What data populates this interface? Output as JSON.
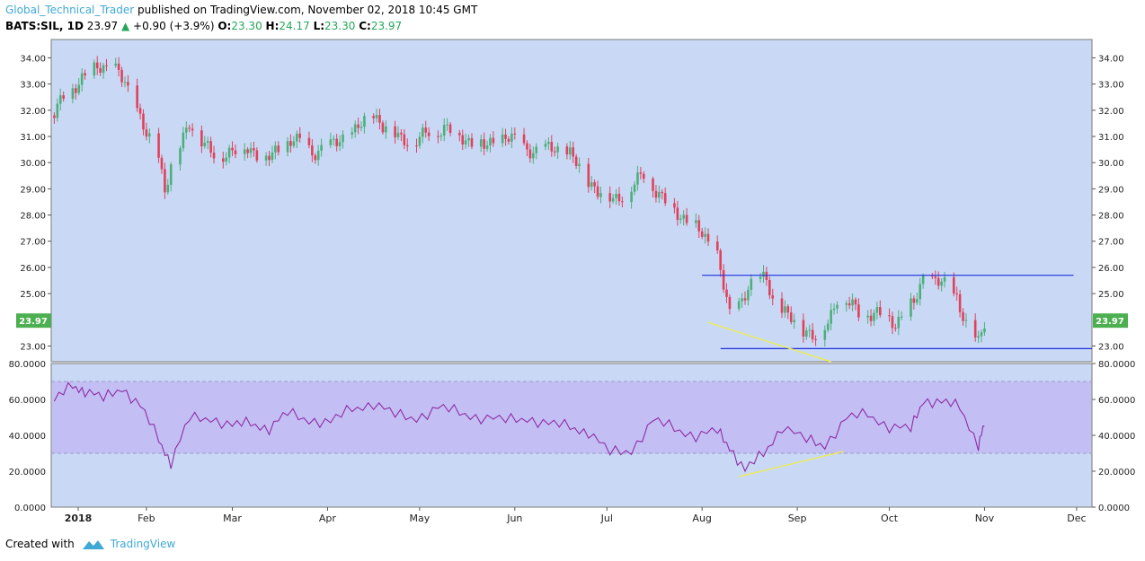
{
  "header": {
    "author": "Global_Technical_Trader",
    "published": "published on TradingView.com, November 02, 2018 10:45 GMT",
    "symbol": "BATS:SIL, 1D",
    "last": "23.97",
    "change": "+0.90 (+3.9%)",
    "o_label": "O:",
    "o": "23.30",
    "h_label": "H:",
    "h": "24.17",
    "l_label": "L:",
    "l": "23.30",
    "c_label": "C:",
    "c": "23.97"
  },
  "footer": {
    "created_with": "Created with",
    "brand": "TradingView"
  },
  "colors": {
    "panel_bg": "#c9d9f5",
    "up": "#4caf7a",
    "down": "#e0415b",
    "rsi_line": "#8e2ca3",
    "rsi_band": "#c3bff4",
    "trendline_blue": "#1f2fe0",
    "trendline_yellow": "#eaea5c",
    "price_tag": "#4caf50"
  },
  "chart_data": [
    {
      "type": "candlestick",
      "symbol": "BATS:SIL",
      "interval": "1D",
      "ylim": [
        22.4,
        34.7
      ],
      "y_ticks": [
        "23.00",
        "25.00",
        "26.00",
        "27.00",
        "28.00",
        "29.00",
        "30.00",
        "31.00",
        "32.00",
        "33.00",
        "34.00"
      ],
      "x_labels": [
        "2018",
        "Feb",
        "Mar",
        "Apr",
        "May",
        "Jun",
        "Jul",
        "Aug",
        "Sep",
        "Oct",
        "Nov",
        "Dec"
      ],
      "last_price_label": "23.97",
      "close_series": {
        "dates": [
          "2018-01-02",
          "2018-01-05",
          "2018-01-09",
          "2018-01-12",
          "2018-01-16",
          "2018-01-19",
          "2018-01-23",
          "2018-01-25",
          "2018-01-29",
          "2018-02-01",
          "2018-02-05",
          "2018-02-07",
          "2018-02-09",
          "2018-02-12",
          "2018-02-15",
          "2018-02-20",
          "2018-02-23",
          "2018-03-01",
          "2018-03-06",
          "2018-03-12",
          "2018-03-16",
          "2018-03-21",
          "2018-03-27",
          "2018-04-02",
          "2018-04-05",
          "2018-04-10",
          "2018-04-16",
          "2018-04-19",
          "2018-04-24",
          "2018-04-30",
          "2018-05-04",
          "2018-05-10",
          "2018-05-16",
          "2018-05-22",
          "2018-05-29",
          "2018-06-04",
          "2018-06-08",
          "2018-06-14",
          "2018-06-19",
          "2018-06-22",
          "2018-06-28",
          "2018-07-03",
          "2018-07-09",
          "2018-07-13",
          "2018-07-19",
          "2018-07-25",
          "2018-07-31",
          "2018-08-06",
          "2018-08-10",
          "2018-08-14",
          "2018-08-16",
          "2018-08-22",
          "2018-08-24",
          "2018-08-29",
          "2018-09-04",
          "2018-09-07",
          "2018-09-11",
          "2018-09-14",
          "2018-09-18",
          "2018-09-21",
          "2018-09-27",
          "2018-10-03",
          "2018-10-09",
          "2018-10-12",
          "2018-10-16",
          "2018-10-19",
          "2018-10-23",
          "2018-10-26",
          "2018-10-30",
          "2018-11-01"
        ],
        "closes": [
          31.8,
          32.6,
          32.9,
          33.2,
          33.8,
          33.6,
          33.4,
          33.1,
          32.0,
          31.0,
          30.3,
          29.0,
          29.8,
          30.6,
          31.6,
          30.6,
          30.3,
          30.4,
          30.6,
          30.1,
          30.5,
          30.9,
          30.4,
          30.6,
          30.9,
          31.2,
          31.9,
          31.4,
          31.0,
          30.8,
          31.2,
          31.3,
          30.9,
          30.6,
          31.0,
          30.6,
          30.4,
          30.6,
          30.3,
          29.8,
          28.9,
          28.6,
          29.0,
          29.6,
          28.6,
          28.0,
          27.4,
          26.5,
          24.1,
          24.8,
          25.3,
          25.6,
          24.8,
          24.1,
          23.6,
          23.3,
          23.9,
          24.9,
          24.6,
          24.3,
          24.2,
          23.9,
          24.6,
          25.6,
          25.5,
          25.3,
          24.9,
          23.8,
          23.1,
          23.97
        ]
      }
    },
    {
      "type": "line",
      "indicator": "RSI",
      "ylim": [
        0,
        80
      ],
      "band": [
        30,
        70
      ],
      "y_ticks": [
        "0.0000",
        "20.0000",
        "40.0000",
        "60.0000",
        "80.0000"
      ],
      "x": [
        "2018-01-02",
        "2018-01-08",
        "2018-01-12",
        "2018-01-18",
        "2018-01-24",
        "2018-01-30",
        "2018-02-05",
        "2018-02-09",
        "2018-02-15",
        "2018-02-22",
        "2018-03-01",
        "2018-03-07",
        "2018-03-13",
        "2018-03-19",
        "2018-03-26",
        "2018-04-02",
        "2018-04-09",
        "2018-04-16",
        "2018-04-23",
        "2018-04-30",
        "2018-05-07",
        "2018-05-14",
        "2018-05-21",
        "2018-05-29",
        "2018-06-05",
        "2018-06-12",
        "2018-06-19",
        "2018-06-25",
        "2018-07-02",
        "2018-07-09",
        "2018-07-16",
        "2018-07-23",
        "2018-07-30",
        "2018-08-06",
        "2018-08-10",
        "2018-08-15",
        "2018-08-21",
        "2018-08-27",
        "2018-09-04",
        "2018-09-10",
        "2018-09-17",
        "2018-09-24",
        "2018-10-01",
        "2018-10-08",
        "2018-10-12",
        "2018-10-18",
        "2018-10-24",
        "2018-10-30",
        "2018-11-01"
      ],
      "values": [
        59,
        68,
        65,
        60,
        67,
        56,
        38,
        25,
        49,
        50,
        45,
        47,
        44,
        52,
        49,
        47,
        55,
        58,
        51,
        50,
        55,
        53,
        50,
        48,
        50,
        46,
        45,
        42,
        30,
        32,
        48,
        44,
        40,
        42,
        34,
        20,
        30,
        45,
        37,
        35,
        49,
        52,
        45,
        43,
        60,
        58,
        56,
        35,
        45
      ]
    }
  ]
}
